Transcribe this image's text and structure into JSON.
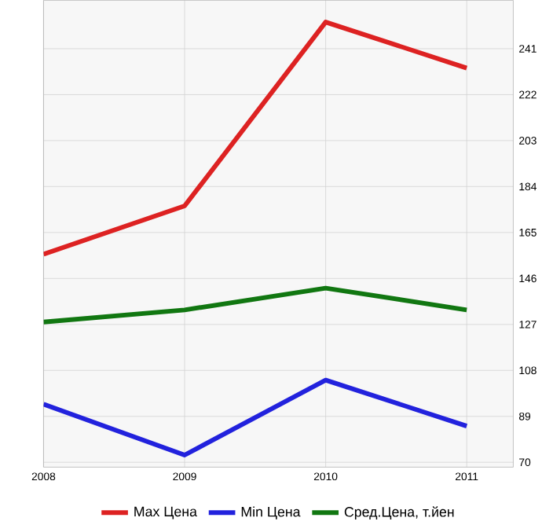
{
  "chart_data": {
    "type": "line",
    "x": [
      2008,
      2009,
      2010,
      2011
    ],
    "series": [
      {
        "name": "Max Цена",
        "color": "#dd2222",
        "values": [
          156,
          176,
          252,
          233
        ]
      },
      {
        "name": "Min Цена",
        "color": "#2222dd",
        "values": [
          94,
          73,
          104,
          85
        ]
      },
      {
        "name": "Сред.Цена, т.йен",
        "color": "#117711",
        "values": [
          128,
          133,
          142,
          133
        ]
      }
    ],
    "xlim": [
      2008,
      2011.33
    ],
    "ylim": [
      68,
      261
    ],
    "xticks": [
      2008,
      2009,
      2010,
      2011
    ],
    "yticks": [
      70,
      89,
      108,
      127,
      146,
      165,
      184,
      203,
      222,
      241
    ],
    "grid": true,
    "legend": "bottom",
    "marker": "none",
    "line_style": "solid"
  }
}
